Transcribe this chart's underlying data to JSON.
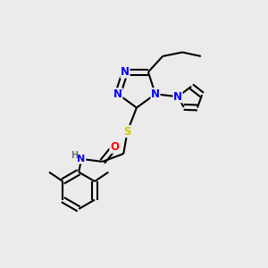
{
  "bg_color": "#ebebeb",
  "atom_colors": {
    "N": "#0000ff",
    "O": "#ff0000",
    "S": "#cccc00",
    "C": "#000000",
    "H": "#707070"
  },
  "bond_color": "#000000"
}
